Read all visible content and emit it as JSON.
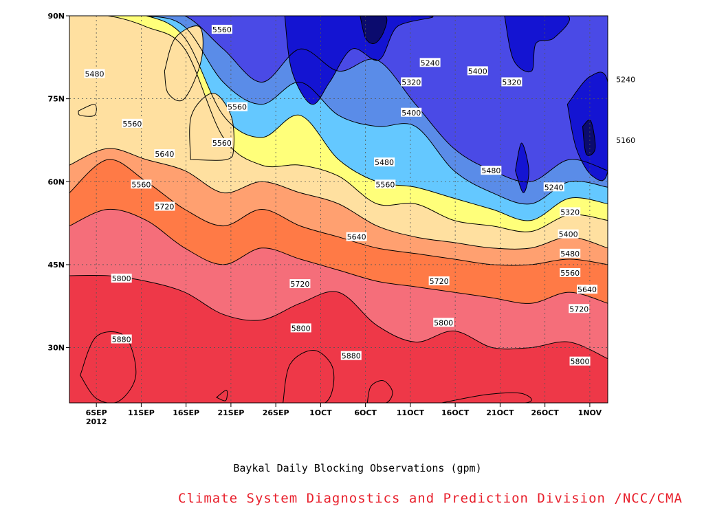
{
  "chart_data": {
    "type": "heatmap",
    "title": "",
    "xlabel": "",
    "ylabel": "",
    "x_ticks": [
      "6SEP",
      "11SEP",
      "16SEP",
      "21SEP",
      "26SEP",
      "1OCT",
      "6OCT",
      "11OCT",
      "16OCT",
      "21OCT",
      "26OCT",
      "1NOV"
    ],
    "x_year_label": "2012",
    "y_ticks": [
      "30N",
      "45N",
      "60N",
      "75N",
      "90N"
    ],
    "y_tick_values": [
      30,
      45,
      60,
      75,
      90
    ],
    "xlim": [
      "2012-09-02",
      "2012-11-01"
    ],
    "ylim": [
      20,
      90
    ],
    "grid": true,
    "levels": [
      5160,
      5240,
      5320,
      5400,
      5480,
      5560,
      5640,
      5720,
      5800,
      5880
    ],
    "level_colors": [
      "#0b0b6e",
      "#1414d2",
      "#4a4ae6",
      "#5a8ce8",
      "#64c8ff",
      "#ffff7a",
      "#ffe0a0",
      "#ffa070",
      "#ff7a46",
      "#f56e7a",
      "#ee3848"
    ],
    "isoline_latitudes": [
      {
        "value": 5800,
        "lat": [
          43,
          43,
          42,
          40,
          36,
          35,
          38,
          40,
          34,
          31,
          33,
          30,
          30,
          31,
          28
        ]
      },
      {
        "value": 5720,
        "lat": [
          52,
          55,
          53,
          48,
          45,
          48,
          46,
          44,
          42,
          41,
          40,
          39,
          38,
          40,
          38
        ]
      },
      {
        "value": 5640,
        "lat": [
          58,
          64,
          60,
          55,
          52,
          55,
          52,
          50,
          48,
          47,
          46,
          45,
          45,
          46,
          45
        ]
      },
      {
        "value": 5560,
        "lat": [
          63,
          66,
          64,
          62,
          58,
          60,
          58,
          56,
          52,
          50,
          49,
          48,
          48,
          50,
          48
        ]
      },
      {
        "value": 5480,
        "lat": [
          90,
          90,
          88,
          84,
          68,
          63,
          63,
          61,
          56,
          56,
          53,
          52,
          51,
          54,
          53
        ]
      },
      {
        "value": 5400,
        "lat": [
          90,
          90,
          90,
          86,
          72,
          68,
          72,
          64,
          60,
          59,
          57,
          55,
          53,
          57,
          56
        ]
      },
      {
        "value": 5320,
        "lat": [
          90,
          90,
          90,
          88,
          78,
          74,
          78,
          72,
          70,
          70,
          62,
          58,
          56,
          60,
          59
        ]
      },
      {
        "value": 5240,
        "lat": [
          90,
          90,
          90,
          90,
          84,
          78,
          84,
          80,
          82,
          74,
          66,
          62,
          60,
          64,
          62
        ]
      }
    ],
    "contour_labels": [
      {
        "text": "5480",
        "day": 2.8,
        "lat": 79.5
      },
      {
        "text": "5560",
        "day": 7.0,
        "lat": 70.5
      },
      {
        "text": "5560",
        "day": 8.0,
        "lat": 59.5
      },
      {
        "text": "5640",
        "day": 10.6,
        "lat": 65.0
      },
      {
        "text": "5720",
        "day": 10.6,
        "lat": 55.5
      },
      {
        "text": "5800",
        "day": 5.8,
        "lat": 42.5
      },
      {
        "text": "5880",
        "day": 5.8,
        "lat": 31.5
      },
      {
        "text": "5560",
        "day": 17.0,
        "lat": 87.5
      },
      {
        "text": "5560",
        "day": 18.7,
        "lat": 73.5
      },
      {
        "text": "5560",
        "day": 17.0,
        "lat": 67.0
      },
      {
        "text": "5720",
        "day": 25.7,
        "lat": 41.5
      },
      {
        "text": "5800",
        "day": 25.8,
        "lat": 33.5
      },
      {
        "text": "5880",
        "day": 31.4,
        "lat": 28.5
      },
      {
        "text": "5640",
        "day": 32.0,
        "lat": 50.0
      },
      {
        "text": "5560",
        "day": 35.2,
        "lat": 59.5
      },
      {
        "text": "5480",
        "day": 35.1,
        "lat": 63.5
      },
      {
        "text": "5400",
        "day": 38.1,
        "lat": 72.5
      },
      {
        "text": "5320",
        "day": 38.1,
        "lat": 78.0
      },
      {
        "text": "5240",
        "day": 40.2,
        "lat": 81.5
      },
      {
        "text": "5720",
        "day": 41.2,
        "lat": 42.0
      },
      {
        "text": "5800",
        "day": 41.7,
        "lat": 34.5
      },
      {
        "text": "5400",
        "day": 45.5,
        "lat": 80.0
      },
      {
        "text": "5320",
        "day": 49.3,
        "lat": 78.0
      },
      {
        "text": "5480",
        "day": 47.0,
        "lat": 62.0
      },
      {
        "text": "5240",
        "day": 54.0,
        "lat": 59.0
      },
      {
        "text": "5320",
        "day": 55.8,
        "lat": 54.5
      },
      {
        "text": "5400",
        "day": 55.6,
        "lat": 50.5
      },
      {
        "text": "5480",
        "day": 55.8,
        "lat": 47.0
      },
      {
        "text": "5560",
        "day": 55.8,
        "lat": 43.5
      },
      {
        "text": "5640",
        "day": 57.7,
        "lat": 40.5
      },
      {
        "text": "5720",
        "day": 56.8,
        "lat": 37.0
      },
      {
        "text": "5800",
        "day": 56.9,
        "lat": 27.5
      },
      {
        "text": "5240",
        "day": 62.0,
        "lat": 78.5
      },
      {
        "text": "5160",
        "day": 62.0,
        "lat": 67.5
      }
    ]
  },
  "caption": "Baykal Daily Blocking Observations (gpm)",
  "credit": "Climate System Diagnostics and Prediction Division /NCC/CMA"
}
